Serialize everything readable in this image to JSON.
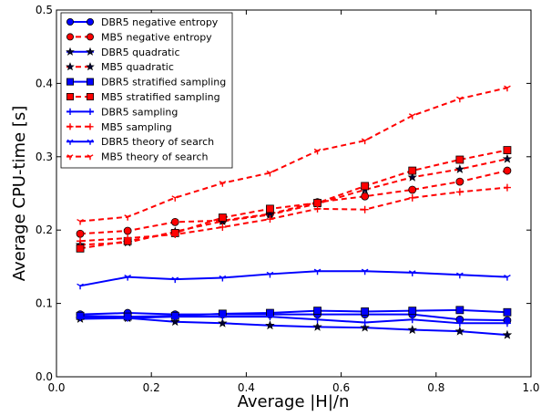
{
  "chart_data": {
    "type": "line",
    "xlabel": "Average |H|/n",
    "ylabel": "Average CPU-time [s]",
    "xlim": [
      0.0,
      1.0
    ],
    "ylim": [
      0.0,
      0.5
    ],
    "xticks": [
      "0.0",
      "0.2",
      "0.4",
      "0.6",
      "0.8",
      "1.0"
    ],
    "yticks": [
      "0.0",
      "0.1",
      "0.2",
      "0.3",
      "0.4",
      "0.5"
    ],
    "grid": false,
    "legend_position": "top-left",
    "x": [
      0.05,
      0.15,
      0.25,
      0.35,
      0.45,
      0.55,
      0.65,
      0.75,
      0.85,
      0.95
    ],
    "series": [
      {
        "name": "DBR5 negative entropy",
        "color": "#0000ff",
        "marker": "circle",
        "dash": "solid",
        "values": [
          0.085,
          0.087,
          0.085,
          0.085,
          0.085,
          0.085,
          0.085,
          0.085,
          0.078,
          0.077
        ]
      },
      {
        "name": "MB5 negative entropy",
        "color": "#ff0000",
        "marker": "circle",
        "dash": "dashed",
        "values": [
          0.195,
          0.199,
          0.211,
          0.213,
          0.222,
          0.238,
          0.246,
          0.255,
          0.266,
          0.281
        ]
      },
      {
        "name": "DBR5 quadratic",
        "color": "#0000ff",
        "marker": "star",
        "dash": "solid",
        "values": [
          0.079,
          0.08,
          0.075,
          0.073,
          0.07,
          0.068,
          0.067,
          0.064,
          0.062,
          0.057
        ]
      },
      {
        "name": "MB5 quadratic",
        "color": "#ff0000",
        "marker": "star",
        "dash": "dashed",
        "values": [
          0.18,
          0.183,
          0.198,
          0.212,
          0.221,
          0.236,
          0.255,
          0.272,
          0.283,
          0.297
        ]
      },
      {
        "name": "DBR5 stratified sampling",
        "color": "#0000ff",
        "marker": "square",
        "dash": "solid",
        "values": [
          0.083,
          0.082,
          0.083,
          0.086,
          0.087,
          0.09,
          0.089,
          0.09,
          0.091,
          0.088
        ]
      },
      {
        "name": "MB5 stratified sampling",
        "color": "#ff0000",
        "marker": "square",
        "dash": "dashed",
        "values": [
          0.175,
          0.185,
          0.196,
          0.217,
          0.229,
          0.237,
          0.26,
          0.281,
          0.296,
          0.309
        ]
      },
      {
        "name": "DBR5 sampling",
        "color": "#0000ff",
        "marker": "plus",
        "dash": "solid",
        "values": [
          0.081,
          0.08,
          0.082,
          0.082,
          0.082,
          0.078,
          0.074,
          0.078,
          0.073,
          0.073
        ]
      },
      {
        "name": "MB5 sampling",
        "color": "#ff0000",
        "marker": "plus",
        "dash": "dashed",
        "values": [
          0.185,
          0.189,
          0.194,
          0.204,
          0.215,
          0.229,
          0.228,
          0.244,
          0.252,
          0.258
        ]
      },
      {
        "name": "DBR5 theory of search",
        "color": "#0000ff",
        "marker": "tri_down",
        "dash": "solid",
        "values": [
          0.124,
          0.136,
          0.133,
          0.135,
          0.14,
          0.144,
          0.144,
          0.142,
          0.139,
          0.136
        ]
      },
      {
        "name": "MB5 theory of search",
        "color": "#ff0000",
        "marker": "tri_down",
        "dash": "dashed",
        "values": [
          0.212,
          0.218,
          0.244,
          0.264,
          0.278,
          0.308,
          0.322,
          0.356,
          0.379,
          0.394
        ]
      }
    ]
  }
}
